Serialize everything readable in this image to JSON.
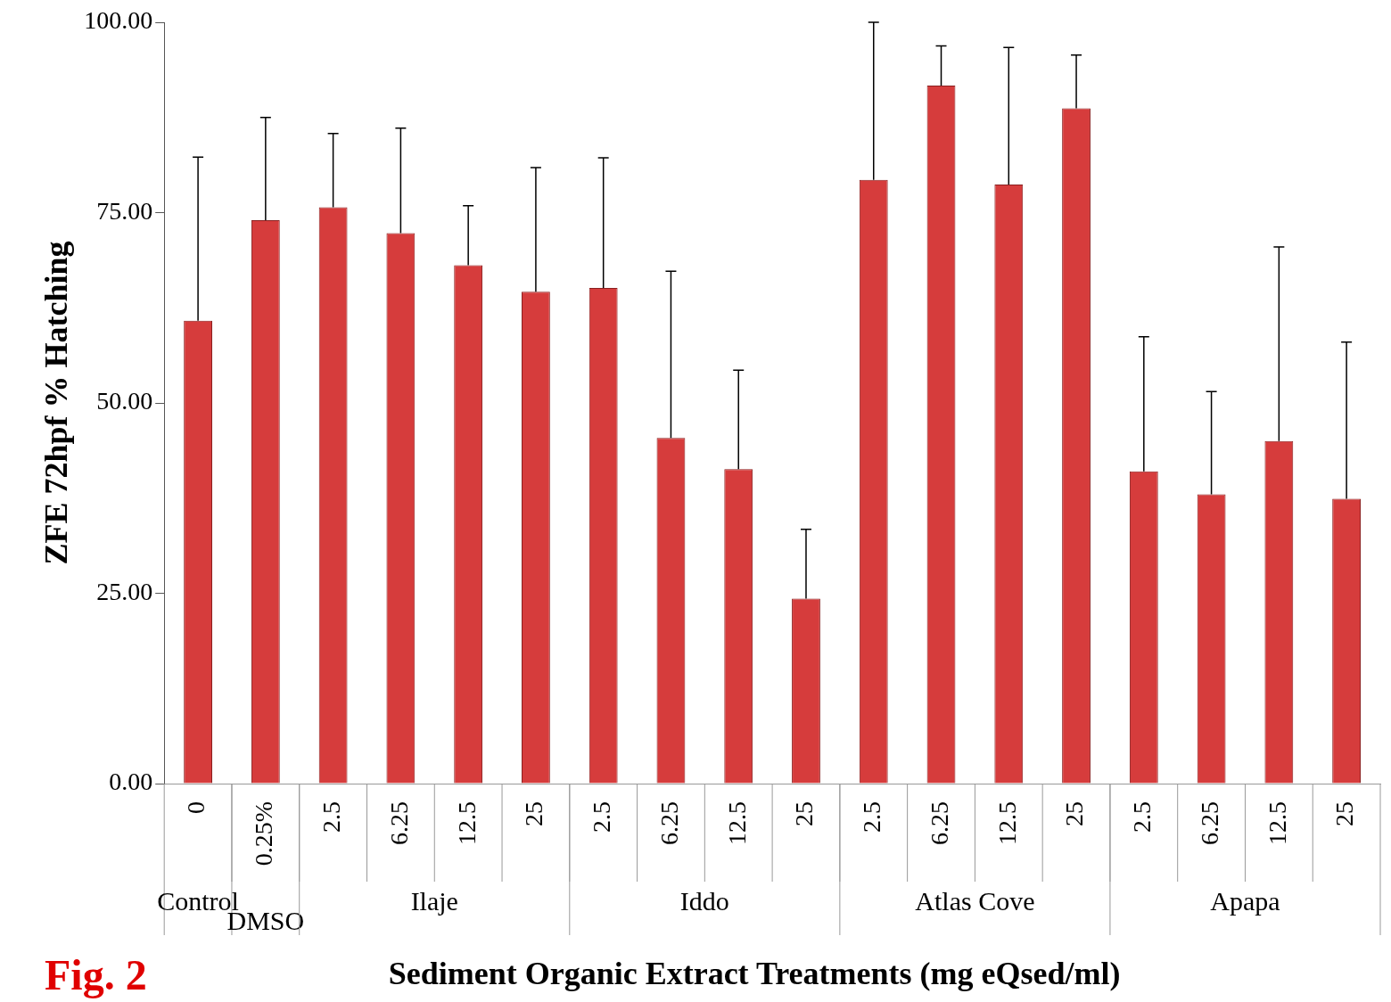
{
  "chart_data": {
    "type": "bar",
    "xlabel": "Sediment Organic Extract Treatments (mg eQsed/ml)",
    "ylabel": "ZFE 72hpf % Hatching",
    "categories": [
      "0",
      "0.25%",
      "2.5",
      "6.25",
      "12.5",
      "25",
      "2.5",
      "6.25",
      "12.5",
      "25",
      "2.5",
      "6.25",
      "12.5",
      "25",
      "2.5",
      "6.25",
      "12.5",
      "25"
    ],
    "values": [
      60.8,
      74.0,
      75.7,
      72.3,
      68.1,
      64.6,
      65.1,
      45.4,
      41.3,
      24.3,
      79.3,
      91.7,
      78.7,
      88.7,
      41.0,
      38.0,
      45.0,
      37.4
    ],
    "errors": [
      [
        60.8,
        82.3
      ],
      [
        74.0,
        87.5
      ],
      [
        75.7,
        85.4
      ],
      [
        72.3,
        86.1
      ],
      [
        68.1,
        75.9
      ],
      [
        64.6,
        80.9
      ],
      [
        65.1,
        82.2
      ],
      [
        45.4,
        67.3
      ],
      [
        41.3,
        54.3
      ],
      [
        24.3,
        33.4
      ],
      [
        79.3,
        100
      ],
      [
        91.7,
        96.9
      ],
      [
        78.7,
        96.7
      ],
      [
        88.7,
        95.7
      ],
      [
        41.0,
        58.7
      ],
      [
        38.0,
        51.5
      ],
      [
        45.0,
        70.5
      ],
      [
        37.4,
        58.0
      ]
    ],
    "color": "#d63c3c",
    "ylim": [
      0,
      100
    ],
    "yticks": [
      {
        "value": 0,
        "label": "0.00"
      },
      {
        "value": 25,
        "label": "25.00"
      },
      {
        "value": 50,
        "label": "50.00"
      },
      {
        "value": 75,
        "label": "75.00"
      },
      {
        "value": 100,
        "label": "100.00"
      }
    ],
    "annotations": [
      "Control",
      "DMSO",
      "Ilaje",
      "Iddo",
      "Atlas Cove",
      "Apapa",
      "Fig. 2"
    ],
    "grid": false,
    "legend": false
  }
}
